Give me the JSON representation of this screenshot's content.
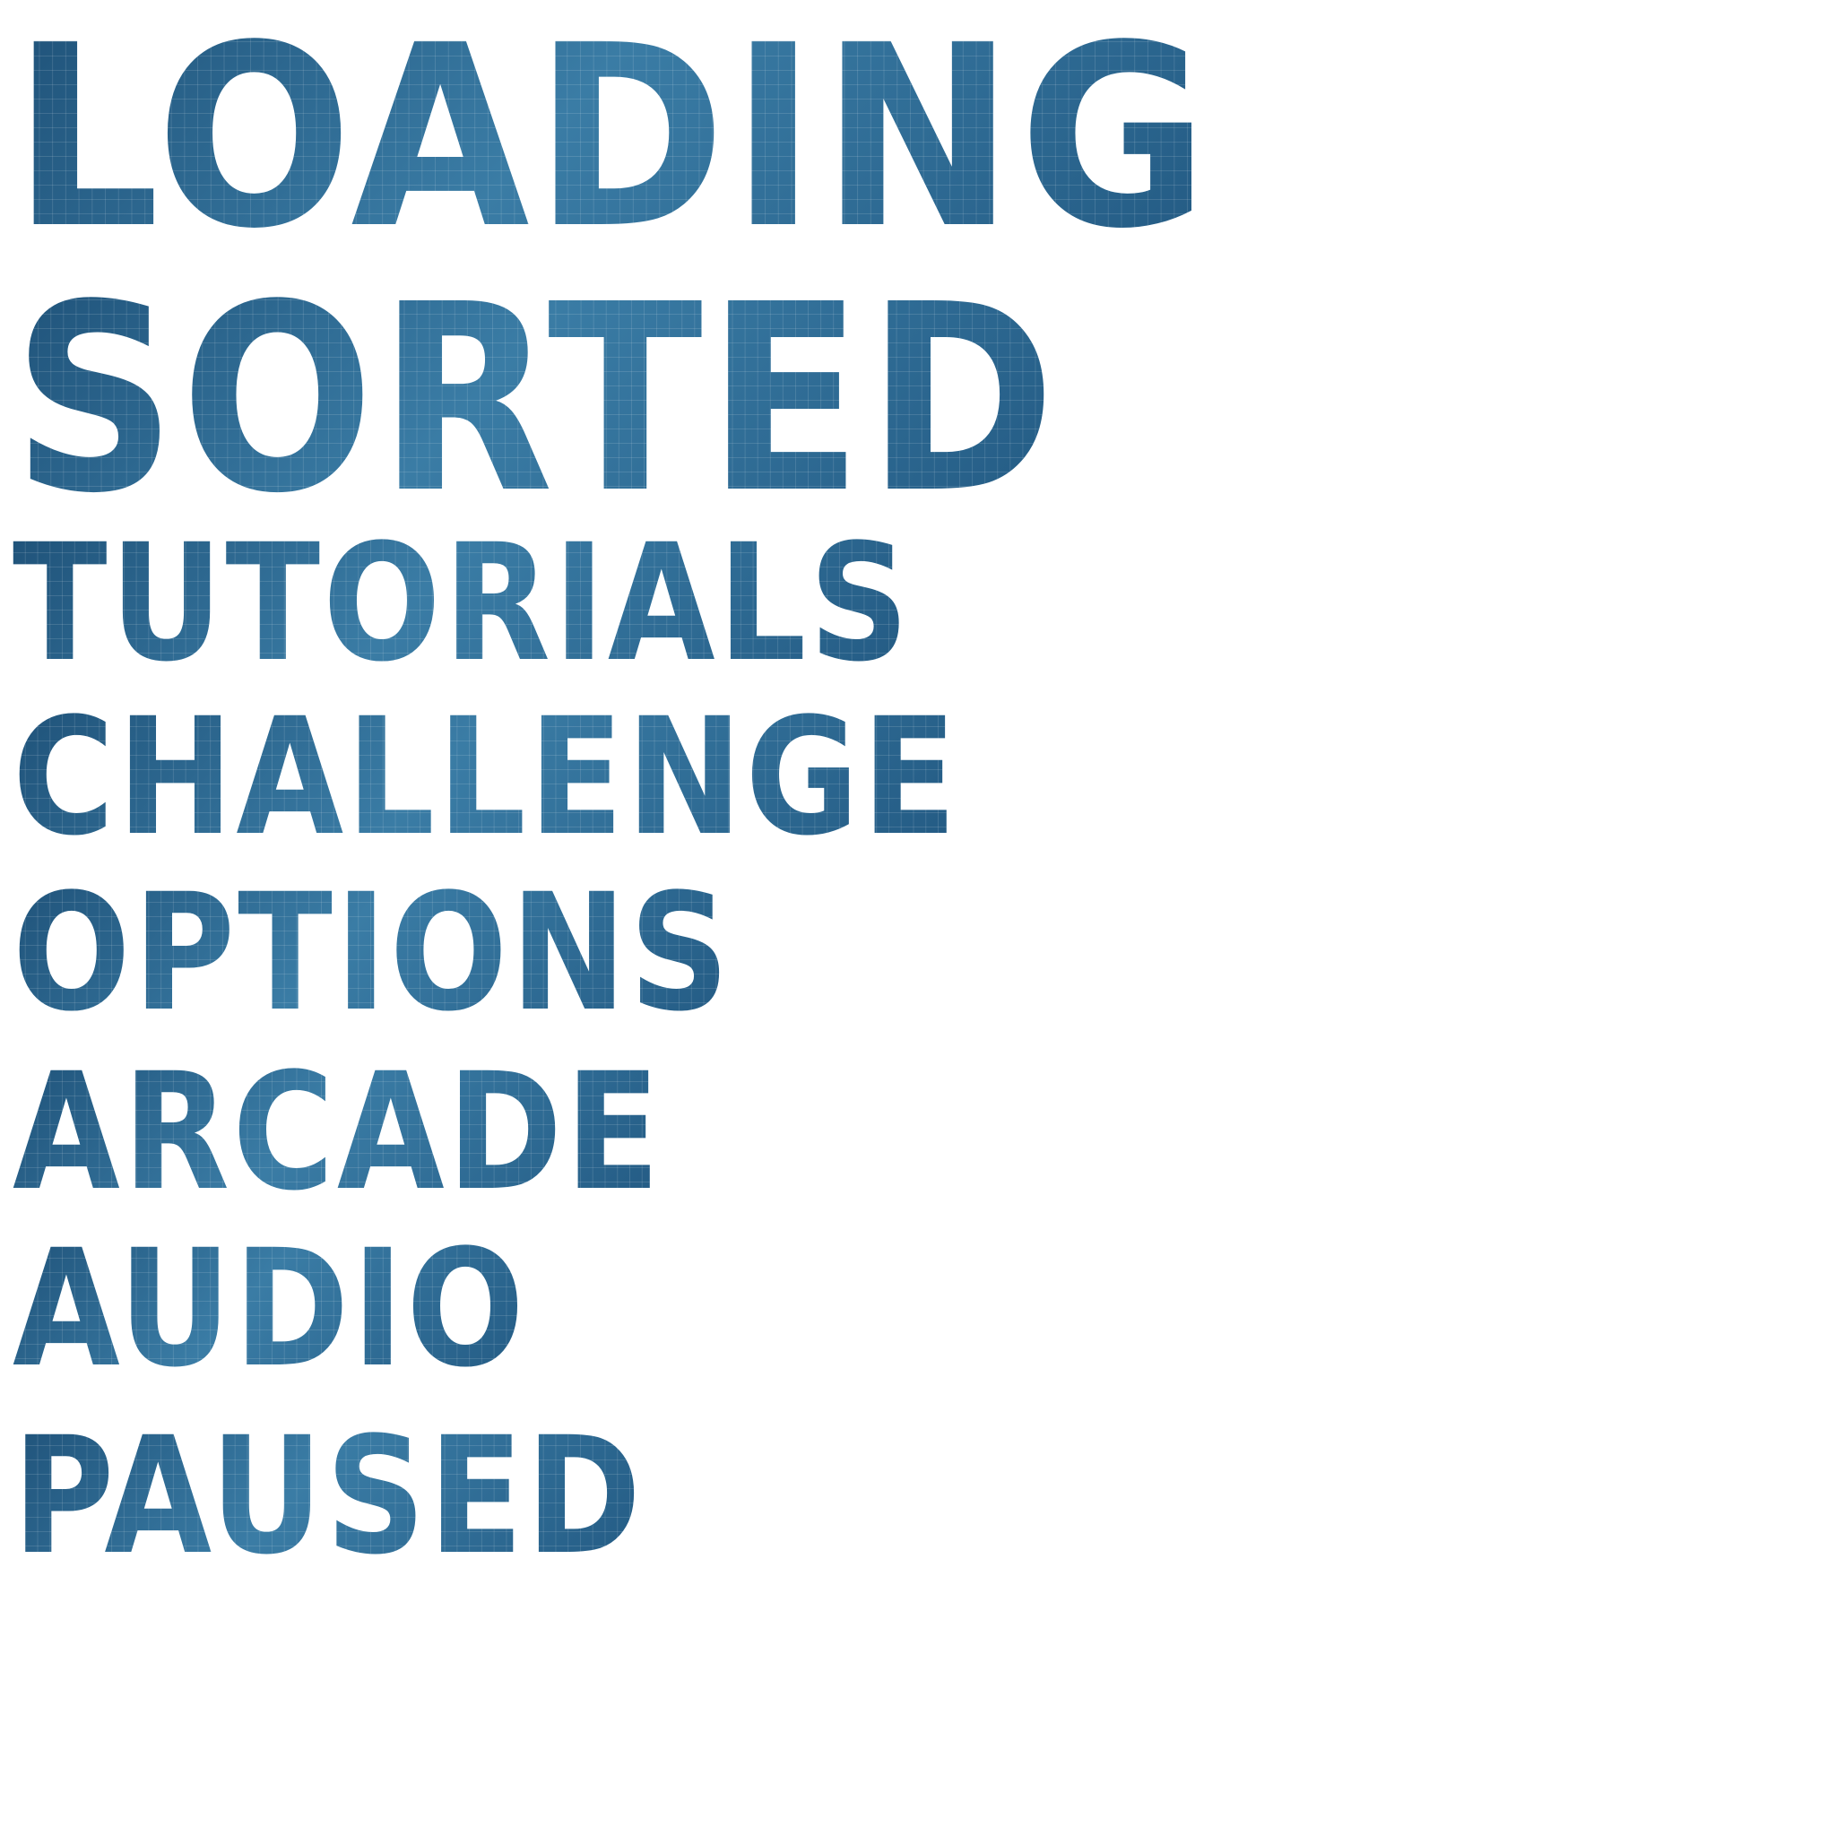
{
  "sprite_sheet": {
    "words": [
      {
        "id": "loading",
        "text": "LOADING"
      },
      {
        "id": "sorted",
        "text": "SORTED"
      },
      {
        "id": "tutorials",
        "text": "TUTORIALS"
      },
      {
        "id": "challenge",
        "text": "CHALLENGE"
      },
      {
        "id": "options",
        "text": "OPTIONS"
      },
      {
        "id": "arcade",
        "text": "ARCADE"
      },
      {
        "id": "audio",
        "text": "AUDIO"
      },
      {
        "id": "paused",
        "text": "PAUSED"
      }
    ],
    "colors": {
      "fill_dark": "#1f5279",
      "fill_mid": "#2f6a94",
      "fill_light": "#3a7ca5",
      "background": "#ffffff"
    }
  }
}
